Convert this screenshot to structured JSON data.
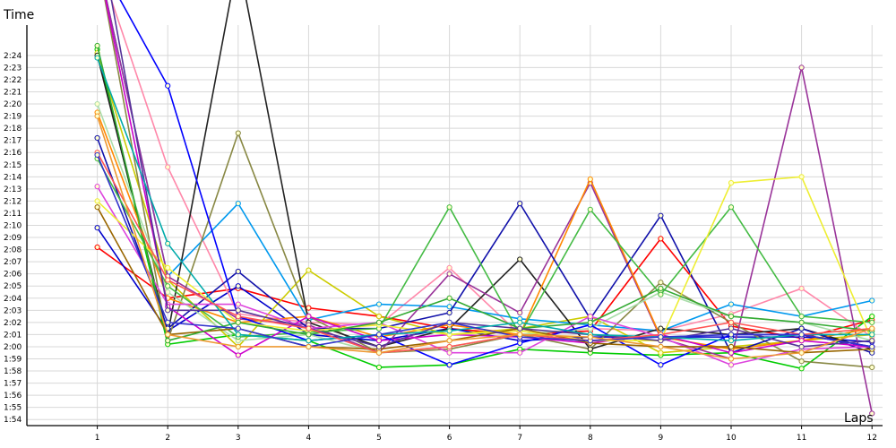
{
  "chart_data": {
    "type": "line",
    "xlabel": "Laps",
    "ylabel": "Time",
    "x": [
      1,
      2,
      3,
      4,
      5,
      6,
      7,
      8,
      9,
      10,
      11,
      12
    ],
    "xlim": [
      0,
      12.15
    ],
    "ylim": [
      113.5,
      146.5
    ],
    "y_ticks": [
      {
        "value": 114,
        "label": "1:54"
      },
      {
        "value": 115,
        "label": "1:55"
      },
      {
        "value": 116,
        "label": "1:56"
      },
      {
        "value": 117,
        "label": "1:57"
      },
      {
        "value": 118,
        "label": "1:58"
      },
      {
        "value": 119,
        "label": "1:59"
      },
      {
        "value": 120,
        "label": "2:00"
      },
      {
        "value": 121,
        "label": "2:01"
      },
      {
        "value": 122,
        "label": "2:02"
      },
      {
        "value": 123,
        "label": "2:03"
      },
      {
        "value": 124,
        "label": "2:04"
      },
      {
        "value": 125,
        "label": "2:05"
      },
      {
        "value": 126,
        "label": "2:06"
      },
      {
        "value": 127,
        "label": "2:07"
      },
      {
        "value": 128,
        "label": "2:08"
      },
      {
        "value": 129,
        "label": "2:09"
      },
      {
        "value": 130,
        "label": "2:10"
      },
      {
        "value": 131,
        "label": "2:11"
      },
      {
        "value": 132,
        "label": "2:12"
      },
      {
        "value": 133,
        "label": "2:13"
      },
      {
        "value": 134,
        "label": "2:14"
      },
      {
        "value": 135,
        "label": "2:15"
      },
      {
        "value": 136,
        "label": "2:16"
      },
      {
        "value": 137,
        "label": "2:17"
      },
      {
        "value": 138,
        "label": "2:18"
      },
      {
        "value": 139,
        "label": "2:19"
      },
      {
        "value": 140,
        "label": "2:20"
      },
      {
        "value": 141,
        "label": "2:21"
      },
      {
        "value": 142,
        "label": "2:22"
      },
      {
        "value": 143,
        "label": "2:23"
      },
      {
        "value": 144,
        "label": "2:24"
      }
    ],
    "x_tick_labels": [
      "1",
      "2",
      "3",
      "4",
      "5",
      "6",
      "7",
      "8",
      "9",
      "10",
      "11",
      "12"
    ],
    "grid": true,
    "legend": "none",
    "series": [
      {
        "color": "#ff0000",
        "values": [
          128.2,
          124.0,
          124.8,
          123.2,
          122.5,
          121.5,
          121.0,
          121.3,
          128.9,
          121.7,
          120.7,
          122.2
        ]
      },
      {
        "color": "#0000cc",
        "values": [
          129.8,
          121.3,
          125.0,
          121.0,
          120.5,
          121.5,
          120.5,
          120.8,
          120.8,
          120.8,
          120.8,
          120.4
        ]
      },
      {
        "color": "#00cc00",
        "values": [
          144.5,
          120.2,
          121.0,
          120.5,
          118.3,
          118.5,
          119.8,
          119.5,
          119.3,
          119.5,
          118.2,
          122.5
        ]
      },
      {
        "color": "#ff88aa",
        "values": [
          152.0,
          134.8,
          122.7,
          122.0,
          121.8,
          126.5,
          121.0,
          121.5,
          121.3,
          122.7,
          124.8,
          120.8
        ]
      },
      {
        "color": "#cccc00",
        "values": [
          144.2,
          125.5,
          120.0,
          126.3,
          122.5,
          121.0,
          121.5,
          122.5,
          119.5,
          120.0,
          120.5,
          121.0
        ]
      },
      {
        "color": "#0099ee",
        "values": [
          152.0,
          125.8,
          131.8,
          122.2,
          123.5,
          123.3,
          122.3,
          121.8,
          121.3,
          123.5,
          122.5,
          123.8
        ]
      },
      {
        "color": "#888844",
        "values": [
          152.0,
          120.5,
          137.6,
          122.5,
          119.5,
          119.8,
          121.0,
          119.8,
          125.3,
          122.0,
          118.8,
          118.3
        ]
      },
      {
        "color": "#222222",
        "values": [
          144.0,
          121.0,
          152.0,
          122.0,
          120.0,
          121.5,
          127.2,
          119.8,
          121.5,
          121.0,
          121.5,
          119.8
        ]
      },
      {
        "color": "#993399",
        "values": [
          152.0,
          125.8,
          122.3,
          121.8,
          119.5,
          126.0,
          122.8,
          133.5,
          120.7,
          119.0,
          143.0,
          114.5
        ]
      },
      {
        "color": "#ff8800",
        "values": [
          139.3,
          124.0,
          122.0,
          122.5,
          120.8,
          121.8,
          121.0,
          133.8,
          120.8,
          119.8,
          120.5,
          121.5
        ]
      },
      {
        "color": "#1111aa",
        "values": [
          137.2,
          121.5,
          126.2,
          121.5,
          121.5,
          122.8,
          131.8,
          122.3,
          130.8,
          119.5,
          121.5,
          119.5
        ]
      },
      {
        "color": "#aaddaa",
        "values": [
          140.0,
          124.5,
          120.5,
          121.0,
          119.5,
          120.0,
          121.0,
          121.5,
          124.5,
          122.5,
          122.0,
          120.5
        ]
      },
      {
        "color": "#dd44dd",
        "values": [
          133.2,
          123.5,
          123.5,
          121.5,
          122.0,
          119.5,
          119.5,
          122.5,
          120.8,
          118.5,
          119.8,
          120.0
        ]
      },
      {
        "color": "#44bb44",
        "values": [
          135.5,
          125.0,
          120.8,
          121.2,
          121.5,
          131.5,
          121.0,
          131.3,
          124.3,
          131.5,
          122.5,
          122.0
        ]
      },
      {
        "color": "#cc00cc",
        "values": [
          152.0,
          123.3,
          119.3,
          122.5,
          120.5,
          121.0,
          120.8,
          120.3,
          121.0,
          119.5,
          120.5,
          120.0
        ]
      },
      {
        "color": "#0000ff",
        "values": [
          152.0,
          141.5,
          122.5,
          120.5,
          121.0,
          118.5,
          120.3,
          121.8,
          118.5,
          121.0,
          121.0,
          120.0
        ]
      },
      {
        "color": "#eeee33",
        "values": [
          132.0,
          126.5,
          122.0,
          121.3,
          121.8,
          121.0,
          121.3,
          120.5,
          120.5,
          133.5,
          134.0,
          120.5
        ]
      },
      {
        "color": "#996600",
        "values": [
          131.5,
          121.0,
          121.5,
          120.0,
          119.8,
          120.5,
          121.5,
          120.3,
          120.0,
          120.0,
          119.5,
          119.8
        ]
      },
      {
        "color": "#33aa33",
        "values": [
          144.8,
          120.5,
          122.0,
          121.0,
          122.0,
          124.0,
          121.5,
          122.0,
          124.8,
          122.5,
          122.0,
          121.3
        ]
      },
      {
        "color": "#553399",
        "values": [
          155.0,
          123.0,
          123.0,
          121.5,
          120.0,
          122.0,
          121.5,
          121.0,
          120.5,
          121.5,
          120.0,
          120.5
        ]
      },
      {
        "color": "#00aaaa",
        "values": [
          143.8,
          128.5,
          121.0,
          120.5,
          121.0,
          121.3,
          122.0,
          121.0,
          120.8,
          120.5,
          121.0,
          121.0
        ]
      },
      {
        "color": "#ff5555",
        "values": [
          136.0,
          125.5,
          122.5,
          121.5,
          119.5,
          120.0,
          121.0,
          120.5,
          121.0,
          122.0,
          121.0,
          121.5
        ]
      },
      {
        "color": "#3333cc",
        "values": [
          135.8,
          122.0,
          121.5,
          120.0,
          121.0,
          122.0,
          120.8,
          120.5,
          120.8,
          121.0,
          121.0,
          120.0
        ]
      },
      {
        "color": "#ee9933",
        "values": [
          139.0,
          121.0,
          120.0,
          120.0,
          119.5,
          120.5,
          121.0,
          120.8,
          120.0,
          119.0,
          119.5,
          121.5
        ]
      }
    ]
  }
}
